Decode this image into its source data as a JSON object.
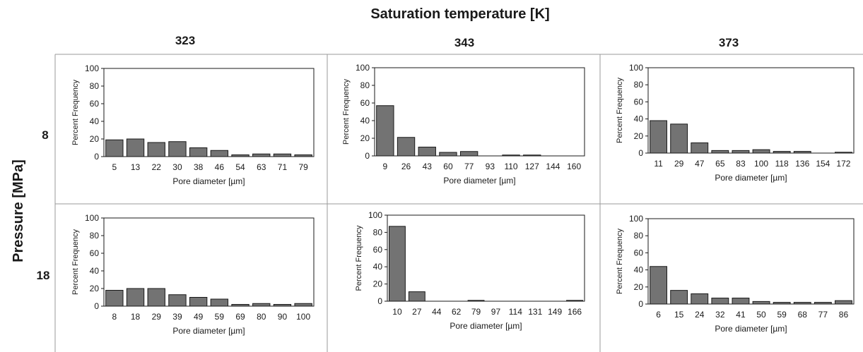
{
  "header": {
    "col_title": "Saturation temperature [K]",
    "row_title": "Pressure [MPa]",
    "columns": [
      "323",
      "343",
      "373"
    ],
    "rows": [
      "8",
      "18"
    ]
  },
  "colors": {
    "bar_fill": "#737373",
    "bar_stroke": "#1a1a1a",
    "grid_line": "#9a9a9a",
    "text": "#1a1a1a"
  },
  "chart_data": [
    {
      "type": "bar",
      "title": "",
      "xlabel": "Pore diameter [µm]",
      "ylabel": "Percent Frequency",
      "ylim": [
        0,
        100
      ],
      "yticks": [
        0,
        20,
        40,
        60,
        80,
        100
      ],
      "grid": false,
      "categories": [
        "5",
        "13",
        "22",
        "30",
        "38",
        "46",
        "54",
        "63",
        "71",
        "79"
      ],
      "values": [
        19,
        20,
        16,
        17,
        10,
        7,
        2,
        3,
        3,
        2
      ]
    },
    {
      "type": "bar",
      "title": "",
      "xlabel": "Pore diameter [µm]",
      "ylabel": "Percent Frequency",
      "ylim": [
        0,
        100
      ],
      "yticks": [
        0,
        20,
        40,
        60,
        80,
        100
      ],
      "grid": false,
      "categories": [
        "9",
        "26",
        "43",
        "60",
        "77",
        "93",
        "110",
        "127",
        "144",
        "160"
      ],
      "values": [
        57,
        21,
        10,
        4,
        5,
        0,
        1,
        1,
        0,
        0
      ]
    },
    {
      "type": "bar",
      "title": "",
      "xlabel": "Pore diameter [µm]",
      "ylabel": "Percent Frequency",
      "ylim": [
        0,
        100
      ],
      "yticks": [
        0,
        20,
        40,
        60,
        80,
        100
      ],
      "grid": false,
      "categories": [
        "11",
        "29",
        "47",
        "65",
        "83",
        "100",
        "118",
        "136",
        "154",
        "172"
      ],
      "values": [
        38,
        34,
        12,
        3,
        3,
        4,
        2,
        2,
        0,
        1
      ]
    },
    {
      "type": "bar",
      "title": "",
      "xlabel": "Pore diameter [µm]",
      "ylabel": "Percent Frequency",
      "ylim": [
        0,
        100
      ],
      "yticks": [
        0,
        20,
        40,
        60,
        80,
        100
      ],
      "grid": false,
      "categories": [
        "8",
        "18",
        "29",
        "39",
        "49",
        "59",
        "69",
        "80",
        "90",
        "100"
      ],
      "values": [
        18,
        20,
        20,
        13,
        10,
        8,
        2,
        3,
        2,
        3
      ]
    },
    {
      "type": "bar",
      "title": "",
      "xlabel": "Pore diameter [µm]",
      "ylabel": "Percent Frequency",
      "ylim": [
        0,
        100
      ],
      "yticks": [
        0,
        20,
        40,
        60,
        80,
        100
      ],
      "grid": false,
      "categories": [
        "10",
        "27",
        "44",
        "62",
        "79",
        "97",
        "114",
        "131",
        "149",
        "166"
      ],
      "values": [
        87,
        11,
        0,
        0,
        1,
        0,
        0,
        0,
        0,
        1
      ]
    },
    {
      "type": "bar",
      "title": "",
      "xlabel": "Pore diameter [µm]",
      "ylabel": "Percent Frequency",
      "ylim": [
        0,
        100
      ],
      "yticks": [
        0,
        20,
        40,
        60,
        80,
        100
      ],
      "grid": false,
      "categories": [
        "6",
        "15",
        "24",
        "32",
        "41",
        "50",
        "59",
        "68",
        "77",
        "86"
      ],
      "values": [
        44,
        16,
        12,
        7,
        7,
        3,
        2,
        2,
        2,
        4
      ]
    }
  ]
}
